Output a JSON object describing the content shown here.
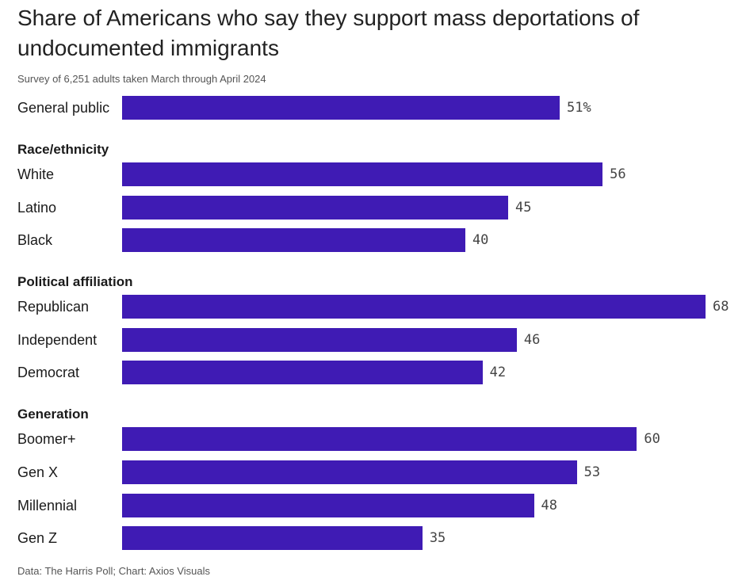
{
  "chart_data": {
    "type": "bar",
    "orientation": "horizontal",
    "title": "Share of Americans who say they support mass deportations of undocumented immigrants",
    "subtitle": "Survey of 6,251 adults taken March through April 2024",
    "source": "Data: The Harris Poll; Chart: Axios Visuals",
    "bar_color": "#3f1bb4",
    "xlim": [
      0,
      68
    ],
    "unit": "%",
    "groups": [
      {
        "header": "",
        "items": [
          {
            "label": "General public",
            "value": 51,
            "value_label": "51%"
          }
        ]
      },
      {
        "header": "Race/ethnicity",
        "items": [
          {
            "label": "White",
            "value": 56,
            "value_label": "56"
          },
          {
            "label": "Latino",
            "value": 45,
            "value_label": "45"
          },
          {
            "label": "Black",
            "value": 40,
            "value_label": "40"
          }
        ]
      },
      {
        "header": "Political affiliation",
        "items": [
          {
            "label": "Republican",
            "value": 68,
            "value_label": "68"
          },
          {
            "label": "Independent",
            "value": 46,
            "value_label": "46"
          },
          {
            "label": "Democrat",
            "value": 42,
            "value_label": "42"
          }
        ]
      },
      {
        "header": "Generation",
        "items": [
          {
            "label": "Boomer+",
            "value": 60,
            "value_label": "60"
          },
          {
            "label": "Gen X",
            "value": 53,
            "value_label": "53"
          },
          {
            "label": "Millennial",
            "value": 48,
            "value_label": "48"
          },
          {
            "label": "Gen Z",
            "value": 35,
            "value_label": "35"
          }
        ]
      }
    ]
  }
}
